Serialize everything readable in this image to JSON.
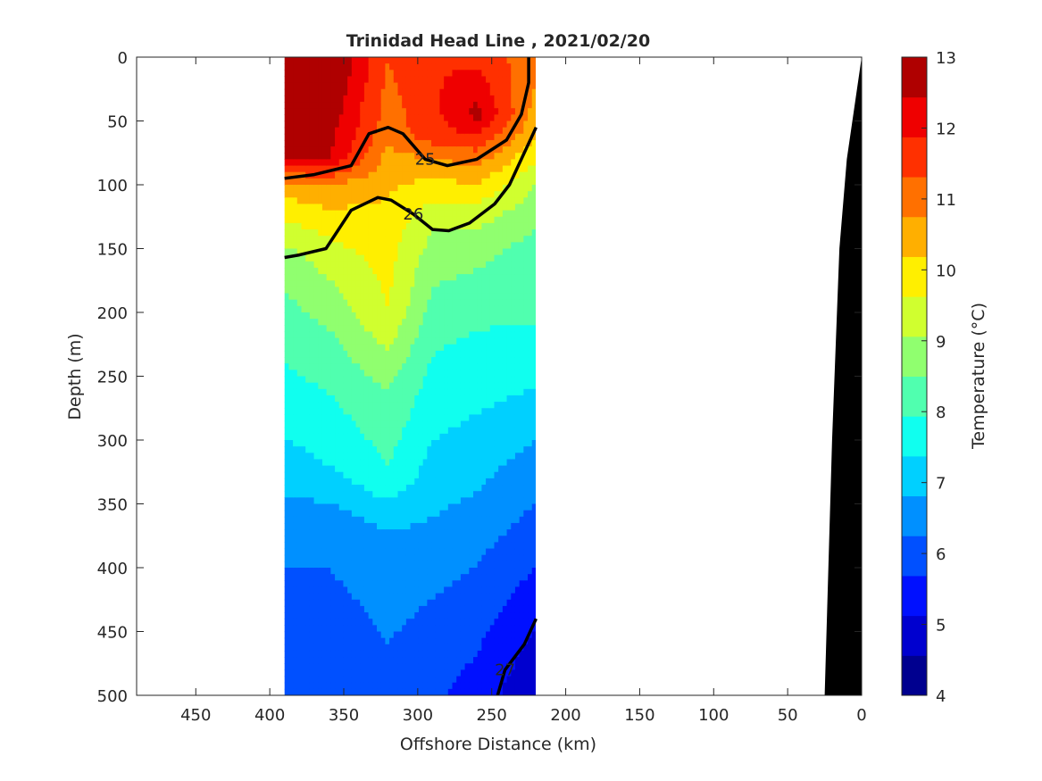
{
  "chart_data": {
    "type": "contour",
    "title": "Trinidad Head Line , 2021/02/20",
    "xlabel": "Offshore Distance (km)",
    "ylabel": "Depth (m)",
    "xlim": [
      490,
      0
    ],
    "ylim": [
      0,
      500
    ],
    "x_reversed": true,
    "y_reversed": true,
    "xticks": [
      "450",
      "400",
      "350",
      "300",
      "250",
      "200",
      "150",
      "100",
      "50",
      "0"
    ],
    "yticks": [
      "0",
      "50",
      "100",
      "150",
      "200",
      "250",
      "300",
      "350",
      "400",
      "450",
      "500"
    ],
    "colorbar": {
      "label": "Temperature (°C)",
      "ticks": [
        "4",
        "5",
        "6",
        "7",
        "8",
        "9",
        "10",
        "11",
        "12",
        "13"
      ],
      "range": [
        4,
        13
      ],
      "step": 0.5,
      "colors": [
        "#00008f",
        "#0000cf",
        "#0010ff",
        "#0050ff",
        "#0090ff",
        "#00d0ff",
        "#10ffef",
        "#50ffaf",
        "#90ff6f",
        "#d0ff2f",
        "#ffef00",
        "#ffaf00",
        "#ff7000",
        "#ff3000",
        "#ef0000",
        "#af0000"
      ]
    },
    "data_extent_km": [
      390,
      220
    ],
    "sampled_columns_km": [
      390,
      360,
      320,
      290,
      260,
      220
    ],
    "temperature_profiles": [
      {
        "distance_km": 390,
        "depth_m": [
          0,
          80,
          100,
          120,
          160,
          230,
          320,
          370,
          440,
          500
        ],
        "temp_c": [
          12.5,
          11.5,
          9.8,
          9.2,
          8.2,
          7.6,
          6.8,
          6.2,
          5.7,
          5.5
        ]
      },
      {
        "distance_km": 360,
        "depth_m": [
          0,
          80,
          100,
          130,
          180,
          230,
          320,
          360,
          430,
          500
        ],
        "temp_c": [
          12.2,
          11.5,
          10.0,
          9.2,
          8.4,
          7.8,
          7.0,
          6.3,
          5.8,
          5.6
        ]
      },
      {
        "distance_km": 320,
        "depth_m": [
          0,
          60,
          80,
          130,
          200,
          260,
          330,
          370,
          460,
          500
        ],
        "temp_c": [
          10.5,
          10.2,
          9.8,
          9.3,
          9.0,
          8.0,
          7.4,
          6.5,
          6.0,
          5.8
        ]
      },
      {
        "distance_km": 290,
        "depth_m": [
          0,
          60,
          90,
          130,
          160,
          220,
          300,
          360,
          450,
          500
        ],
        "temp_c": [
          11.0,
          10.8,
          9.6,
          8.6,
          8.2,
          7.6,
          7.0,
          6.5,
          5.8,
          5.6
        ]
      },
      {
        "distance_km": 260,
        "depth_m": [
          0,
          45,
          80,
          120,
          150,
          200,
          280,
          340,
          420,
          500
        ],
        "temp_c": [
          10.8,
          11.7,
          10.2,
          8.8,
          8.2,
          7.6,
          7.0,
          6.5,
          5.8,
          5.3
        ]
      },
      {
        "distance_km": 220,
        "depth_m": [
          0,
          60,
          100,
          150,
          200,
          260,
          300,
          400,
          470,
          500
        ],
        "temp_c": [
          10.2,
          9.6,
          8.5,
          7.8,
          7.6,
          7.0,
          6.5,
          5.5,
          4.8,
          4.5
        ]
      }
    ],
    "density_contours": [
      {
        "label": "25",
        "points": [
          [
            390,
            95
          ],
          [
            370,
            92
          ],
          [
            345,
            85
          ],
          [
            333,
            60
          ],
          [
            320,
            55
          ],
          [
            310,
            60
          ],
          [
            295,
            80
          ],
          [
            280,
            85
          ],
          [
            260,
            80
          ],
          [
            240,
            65
          ],
          [
            230,
            45
          ],
          [
            225,
            20
          ],
          [
            225,
            0
          ]
        ]
      },
      {
        "label": "26",
        "points": [
          [
            390,
            157
          ],
          [
            380,
            155
          ],
          [
            362,
            150
          ],
          [
            345,
            120
          ],
          [
            327,
            110
          ],
          [
            318,
            112
          ],
          [
            303,
            123
          ],
          [
            290,
            135
          ],
          [
            279,
            136
          ],
          [
            265,
            130
          ],
          [
            248,
            115
          ],
          [
            238,
            100
          ],
          [
            220,
            55
          ]
        ]
      },
      {
        "label": "27",
        "points": [
          [
            220,
            440
          ],
          [
            228,
            460
          ],
          [
            241,
            480
          ],
          [
            246,
            500
          ]
        ]
      }
    ],
    "bathymetry": {
      "distance_km": [
        490,
        25,
        20,
        15,
        10,
        0,
        0,
        490
      ],
      "depth_m": [
        500,
        500,
        300,
        150,
        80,
        0,
        500,
        500
      ]
    }
  }
}
